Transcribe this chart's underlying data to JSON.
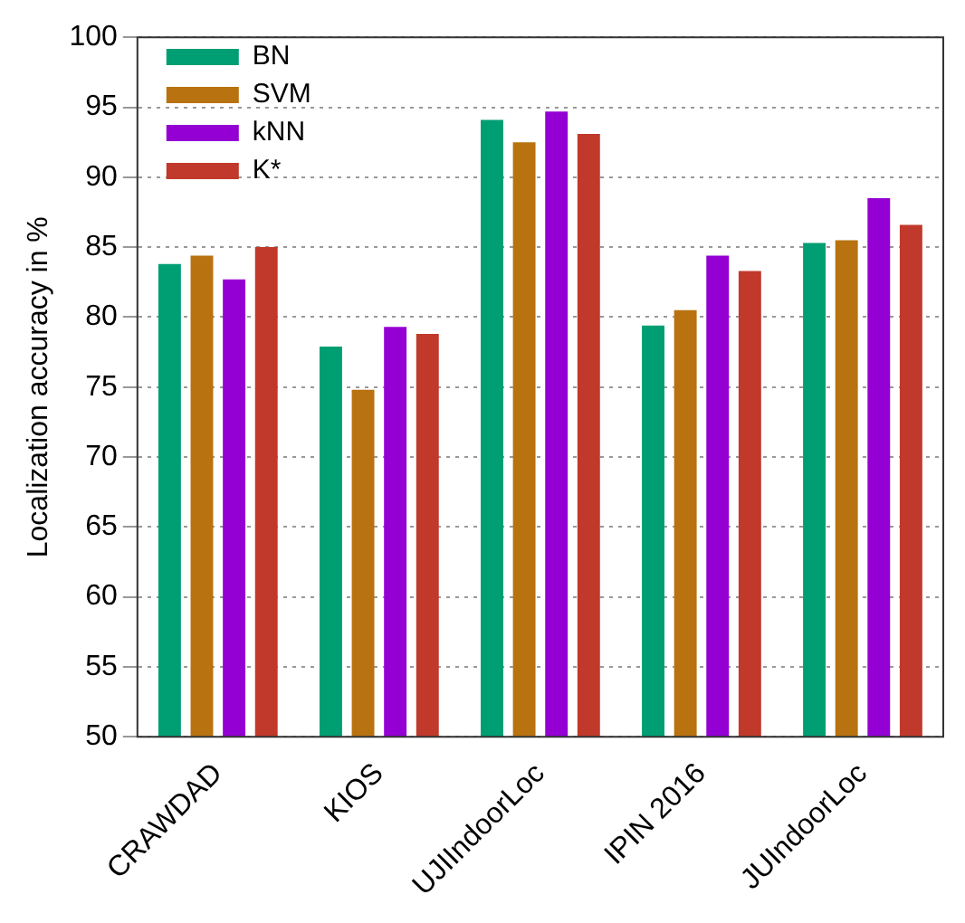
{
  "chart_data": {
    "type": "bar",
    "ylabel": "Localization accuracy in %",
    "categories": [
      "CRAWDAD",
      "KIOS",
      "UJIIndoorLoc",
      "IPIN 2016",
      "JUIndoorLoc"
    ],
    "series": [
      {
        "name": "BN",
        "color": "#009e73",
        "values": [
          83.8,
          77.9,
          94.1,
          79.4,
          85.3
        ]
      },
      {
        "name": "SVM",
        "color": "#b8720f",
        "values": [
          84.4,
          74.8,
          92.5,
          80.5,
          85.5
        ]
      },
      {
        "name": "kNN",
        "color": "#9400d3",
        "values": [
          82.7,
          79.3,
          94.7,
          84.4,
          88.5
        ]
      },
      {
        "name": "K*",
        "color": "#c0392b",
        "values": [
          85.0,
          78.8,
          93.1,
          83.3,
          86.6
        ]
      }
    ],
    "ylim": [
      50,
      100
    ],
    "yticks": [
      50,
      55,
      60,
      65,
      70,
      75,
      80,
      85,
      90,
      95,
      100
    ],
    "grid": "y",
    "legend": "top left"
  }
}
